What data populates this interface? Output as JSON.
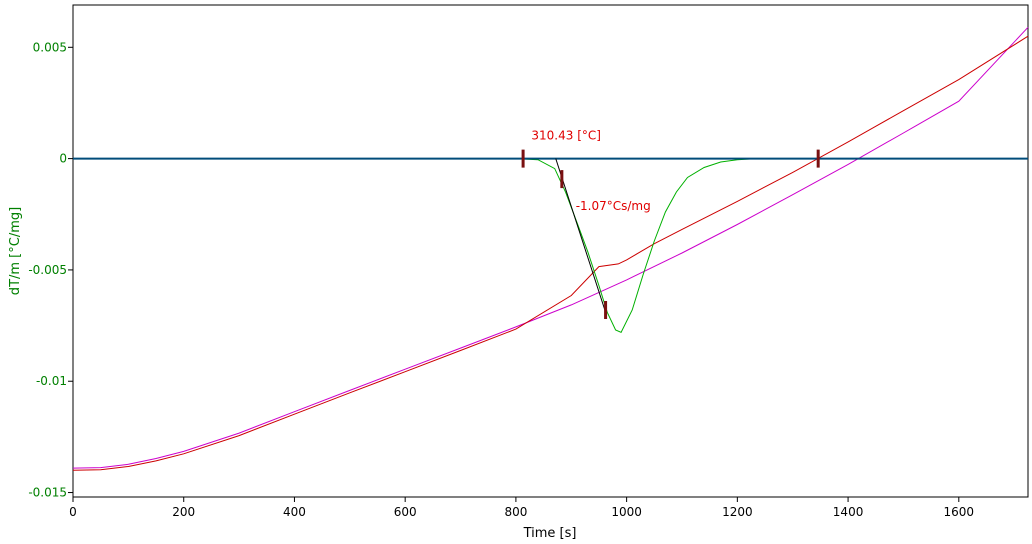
{
  "chart_data": {
    "type": "line",
    "xlabel": "Time [s]",
    "ylabel": "dT/m  [°C/mg]",
    "xlim": [
      0,
      1725
    ],
    "ylim": [
      -0.0152,
      0.0069
    ],
    "xticks": [
      0,
      200,
      400,
      600,
      800,
      1000,
      1200,
      1400,
      1600
    ],
    "xtick_labels": [
      "0",
      "200",
      "400",
      "600",
      "800",
      "1000",
      "1200",
      "1400",
      "1600"
    ],
    "yticks": [
      0.005,
      0,
      -0.005,
      -0.01,
      -0.015
    ],
    "ytick_labels": [
      "0.005",
      "0",
      "-0.005",
      "-0.01",
      "-0.015"
    ],
    "grid": false,
    "colors": {
      "axis_label": "#008000",
      "annotation": "#e00000",
      "baseline": "#004c7a",
      "marker": "#7a1010",
      "tangent": "#000000"
    },
    "series": [
      {
        "color": "#cc00cc",
        "x": [
          0,
          50,
          100,
          150,
          200,
          300,
          400,
          500,
          600,
          700,
          800,
          900,
          1000,
          1100,
          1200,
          1300,
          1400,
          1500,
          1600,
          1725
        ],
        "values": [
          -0.0139,
          -0.01388,
          -0.01373,
          -0.01347,
          -0.01315,
          -0.01233,
          -0.01137,
          -0.01041,
          -0.00946,
          -0.00851,
          -0.00756,
          -0.00657,
          -0.00545,
          -0.00424,
          -0.00296,
          -0.00162,
          -0.00026,
          0.00115,
          0.00258,
          0.0059
        ]
      },
      {
        "color": "#cc0000",
        "x": [
          0,
          50,
          100,
          150,
          200,
          300,
          400,
          500,
          600,
          700,
          800,
          900,
          950,
          985,
          1000,
          1050,
          1100,
          1200,
          1300,
          1400,
          1500,
          1600,
          1725
        ],
        "values": [
          -0.014,
          -0.01398,
          -0.01383,
          -0.01358,
          -0.01326,
          -0.01244,
          -0.01148,
          -0.01052,
          -0.00957,
          -0.00862,
          -0.00766,
          -0.00615,
          -0.00485,
          -0.00473,
          -0.00455,
          -0.00382,
          -0.00318,
          -0.00192,
          -0.00062,
          0.00075,
          0.00215,
          0.00355,
          0.0055
        ]
      },
      {
        "color": "#00b000",
        "x": [
          0,
          800,
          840,
          870,
          890,
          910,
          930,
          950,
          965,
          980,
          990,
          1010,
          1030,
          1050,
          1070,
          1090,
          1110,
          1140,
          1170,
          1200,
          1230,
          1260,
          1300,
          1725
        ],
        "values": [
          0,
          0,
          -5e-05,
          -0.00045,
          -0.00152,
          -0.00285,
          -0.0042,
          -0.0057,
          -0.0069,
          -0.0077,
          -0.0078,
          -0.0068,
          -0.0052,
          -0.0037,
          -0.0024,
          -0.0015,
          -0.00085,
          -0.0004,
          -0.00015,
          -5e-05,
          -1e-05,
          0,
          0,
          0
        ]
      },
      {
        "color": "#004c7a",
        "x": [
          0,
          1725
        ],
        "values": [
          0,
          0
        ]
      }
    ],
    "tangent": {
      "x": [
        872,
        962
      ],
      "values": [
        0,
        -0.0069
      ]
    },
    "markers": [
      {
        "x": 813,
        "y": 0
      },
      {
        "x": 883,
        "y": -0.00092
      },
      {
        "x": 962,
        "y": -0.0068
      },
      {
        "x": 1346,
        "y": 0
      }
    ],
    "annotations": [
      {
        "text": "310.43 [°C]",
        "x": 828,
        "y": 0.00085
      },
      {
        "text": "-1.07°Cs/mg",
        "x": 908,
        "y": -0.0023
      }
    ]
  }
}
